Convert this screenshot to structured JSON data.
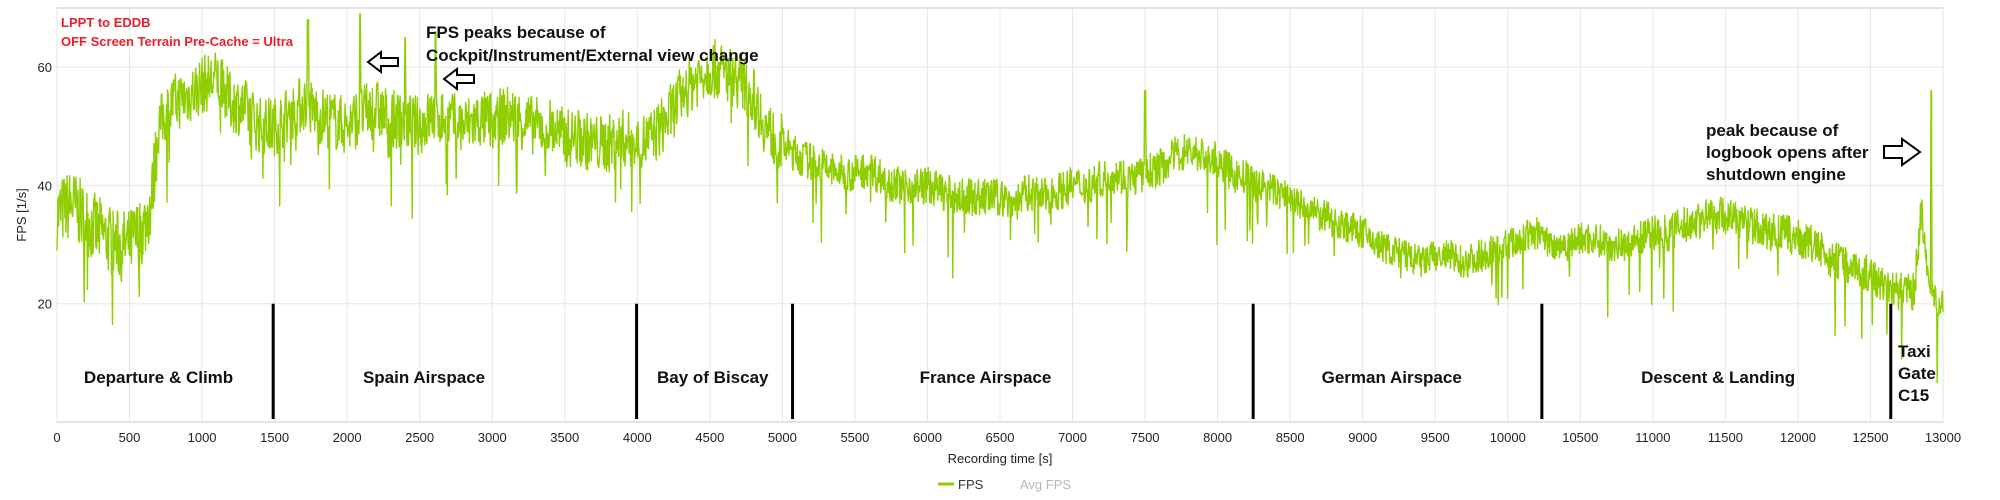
{
  "chart_data": {
    "type": "line",
    "xlabel": "Recording time [s]",
    "ylabel": "FPS [1/s]",
    "xlim": [
      0,
      13000
    ],
    "ylim": [
      0,
      70
    ],
    "x_ticks": [
      "0",
      "500",
      "1000",
      "1500",
      "2000",
      "2500",
      "3000",
      "3500",
      "4000",
      "4500",
      "5000",
      "5500",
      "6000",
      "6500",
      "7000",
      "7500",
      "8000",
      "8500",
      "9000",
      "9500",
      "10000",
      "10500",
      "11000",
      "11500",
      "12000",
      "12500",
      "13000"
    ],
    "y_ticks": [
      "20",
      "40",
      "60"
    ],
    "grid": true,
    "legend_position": "bottom-center",
    "series": [
      {
        "name": "FPS",
        "color": "#8fce00",
        "x": [
          0,
          100,
          200,
          300,
          400,
          500,
          600,
          650,
          700,
          800,
          900,
          1000,
          1100,
          1200,
          1300,
          1400,
          1500,
          1600,
          1700,
          1800,
          1900,
          2000,
          2100,
          2200,
          2300,
          2400,
          2500,
          2600,
          2700,
          2800,
          2900,
          3000,
          3100,
          3200,
          3300,
          3400,
          3500,
          3600,
          3700,
          3800,
          3900,
          4000,
          4100,
          4200,
          4300,
          4400,
          4500,
          4600,
          4700,
          4800,
          4900,
          5000,
          5100,
          5200,
          5300,
          5400,
          5500,
          5600,
          5700,
          5800,
          5900,
          6000,
          6100,
          6200,
          6300,
          6400,
          6500,
          6600,
          6700,
          6800,
          6900,
          7000,
          7100,
          7200,
          7300,
          7400,
          7500,
          7600,
          7700,
          7800,
          7900,
          8000,
          8100,
          8200,
          8300,
          8400,
          8500,
          8600,
          8700,
          8800,
          8900,
          9000,
          9100,
          9200,
          9300,
          9400,
          9500,
          9600,
          9700,
          9800,
          9900,
          10000,
          10100,
          10200,
          10300,
          10400,
          10500,
          10600,
          10700,
          10800,
          10900,
          11000,
          11100,
          11200,
          11300,
          11400,
          11500,
          11600,
          11700,
          11800,
          11900,
          12000,
          12100,
          12200,
          12300,
          12400,
          12500,
          12600,
          12700,
          12800,
          12850,
          12900,
          12950,
          13000
        ],
        "values": [
          35,
          37,
          34,
          32,
          30,
          30,
          33,
          37,
          50,
          54,
          55,
          57,
          58,
          54,
          53,
          50,
          50,
          52,
          54,
          52,
          51,
          50,
          52,
          53,
          51,
          51,
          50,
          52,
          51,
          50,
          51,
          51,
          52,
          51,
          50,
          50,
          48,
          48,
          47,
          47,
          48,
          47,
          48,
          51,
          55,
          58,
          60,
          59,
          58,
          55,
          49,
          47,
          45,
          44,
          43,
          42,
          42,
          43,
          41,
          40,
          40,
          40,
          39,
          38,
          38,
          38,
          38,
          37,
          39,
          38,
          39,
          40,
          40,
          41,
          42,
          41,
          42,
          43,
          45,
          46,
          45,
          44,
          42,
          41,
          40,
          39,
          38,
          36,
          35,
          34,
          33,
          32,
          30,
          29,
          28,
          27,
          28,
          28,
          27,
          28,
          29,
          30,
          31,
          32,
          30,
          30,
          31,
          31,
          30,
          30,
          31,
          32,
          32,
          33,
          34,
          35,
          35,
          34,
          33,
          32,
          32,
          31,
          30,
          28,
          27,
          26,
          25,
          23,
          22,
          22,
          36,
          22,
          21,
          21
        ]
      },
      {
        "name": "Avg FPS",
        "color": "#b8b8b8",
        "values": []
      }
    ],
    "annotations": {
      "route": "LPPT to EDDB",
      "setting": "OFF Screen Terrain Pre-Cache = Ultra",
      "fps_peaks_line1": "FPS peaks because of",
      "fps_peaks_line2": "Cockpit/Instrument/External view change",
      "logbook_line1": "peak because of",
      "logbook_line2": "logbook opens after",
      "logbook_line3": "shutdown engine"
    },
    "peaks": [
      {
        "x": 1730,
        "y": 68
      },
      {
        "x": 2090,
        "y": 69
      },
      {
        "x": 2400,
        "y": 65
      },
      {
        "x": 2610,
        "y": 66
      },
      {
        "x": 7500,
        "y": 56
      },
      {
        "x": 12920,
        "y": 56
      }
    ],
    "phase_dividers": [
      1490,
      3995,
      5070,
      8245,
      10235,
      12640
    ],
    "phases": [
      {
        "label": "Departure & Climb",
        "x": 700
      },
      {
        "label": "Spain Airspace",
        "x": 2530
      },
      {
        "label": "Bay of Biscay",
        "x": 4520
      },
      {
        "label": "France Airspace",
        "x": 6400
      },
      {
        "label": "German Airspace",
        "x": 9200
      },
      {
        "label": "Descent & Landing",
        "x": 11450
      }
    ],
    "last_phase": {
      "line1": "Taxi",
      "line2": "Gate",
      "line3": "C15",
      "x": 12690
    }
  }
}
